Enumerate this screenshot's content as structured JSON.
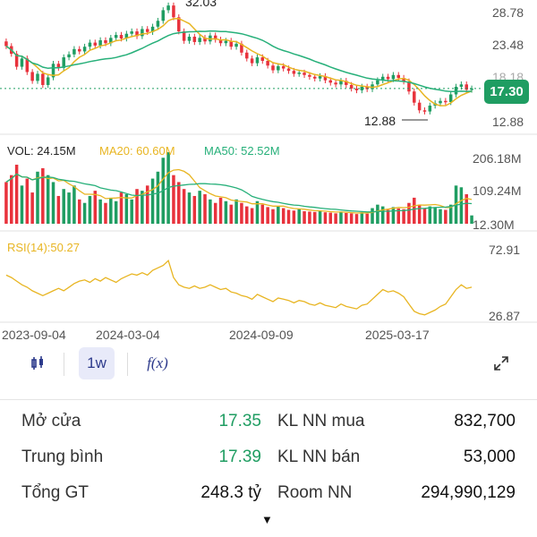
{
  "price_axis": {
    "labels": [
      "28.78",
      "23.48",
      "18.18",
      "12.88"
    ],
    "current": "17.30",
    "low_marker": "12.88",
    "high_marker": "32.03"
  },
  "volume": {
    "vol_label": "VOL: 24.15M",
    "ma20_label": "MA20: 60.60M",
    "ma50_label": "MA50: 52.52M",
    "axis_labels": [
      "206.18M",
      "109.24M",
      "12.30M"
    ]
  },
  "rsi": {
    "label": "RSI(14):50.27",
    "axis_labels": [
      "72.91",
      "26.87"
    ]
  },
  "time_axis": [
    "2023-09-04",
    "2024-03-04",
    "2024-09-09",
    "2025-03-17"
  ],
  "toolbar": {
    "candle_icon": "candlestick-icon",
    "interval": "1w",
    "fx_label": "f(x)",
    "expand_icon": "expand-icon"
  },
  "stats": {
    "open_label": "Mở cửa",
    "open_value": "17.35",
    "avg_label": "Trung bình",
    "avg_value": "17.39",
    "total_label": "Tổng GT",
    "total_value": "248.3 tỷ",
    "buy_label": "KL NN mua",
    "buy_value": "832,700",
    "sell_label": "KL NN bán",
    "sell_value": "53,000",
    "room_label": "Room NN",
    "room_value": "294,990,129"
  },
  "colors": {
    "up": "#1f9d62",
    "down": "#e8323c",
    "ma_fast": "#e8b522",
    "ma_slow": "#27b07a",
    "rsi": "#e8b522"
  },
  "chart_data": {
    "type": "candlestick",
    "price_range": [
      12.88,
      32.03
    ],
    "closes": [
      24.5,
      23.2,
      21.0,
      22.4,
      20.1,
      18.6,
      19.8,
      17.9,
      19.2,
      21.5,
      20.8,
      22.6,
      23.1,
      24.0,
      23.6,
      24.4,
      25.1,
      24.6,
      25.5,
      25.0,
      25.9,
      26.4,
      25.8,
      26.6,
      27.0,
      26.2,
      27.4,
      26.9,
      27.8,
      28.8,
      30.6,
      31.4,
      29.4,
      27.0,
      25.4,
      26.1,
      25.2,
      25.9,
      25.3,
      26.3,
      25.6,
      25.0,
      25.4,
      24.4,
      24.9,
      23.4,
      22.4,
      21.6,
      22.6,
      22.0,
      21.2,
      20.4,
      21.1,
      20.7,
      20.3,
      19.8,
      20.0,
      19.6,
      19.3,
      19.0,
      19.4,
      18.7,
      18.3,
      18.0,
      18.6,
      17.9,
      17.3,
      17.0,
      17.6,
      17.2,
      18.0,
      18.7,
      19.3,
      18.9,
      19.6,
      19.1,
      18.5,
      16.8,
      14.9,
      13.6,
      13.4,
      14.4,
      14.8,
      15.2,
      15.0,
      16.3,
      17.6,
      18.0,
      17.1,
      17.3
    ],
    "rsi_values": [
      60,
      58,
      55,
      52,
      50,
      47,
      45,
      43,
      45,
      47,
      49,
      47,
      50,
      53,
      55,
      56,
      54,
      57,
      55,
      58,
      56,
      54,
      57,
      59,
      61,
      60,
      62,
      60,
      64,
      66,
      68,
      72,
      58,
      52,
      50,
      49,
      51,
      49,
      50,
      52,
      50,
      48,
      49,
      46,
      45,
      43,
      42,
      40,
      44,
      42,
      40,
      38,
      41,
      40,
      39,
      37,
      39,
      38,
      36,
      35,
      37,
      35,
      34,
      33,
      36,
      34,
      33,
      32,
      35,
      36,
      40,
      44,
      48,
      46,
      47,
      45,
      42,
      36,
      30,
      28,
      27,
      29,
      31,
      34,
      36,
      42,
      48,
      52,
      49,
      50
    ],
    "volume_values": [
      120,
      140,
      170,
      110,
      130,
      90,
      150,
      160,
      140,
      120,
      80,
      100,
      90,
      110,
      70,
      60,
      80,
      95,
      70,
      60,
      75,
      65,
      90,
      85,
      70,
      100,
      95,
      110,
      130,
      150,
      190,
      206,
      140,
      120,
      100,
      90,
      80,
      95,
      85,
      70,
      60,
      75,
      65,
      55,
      70,
      60,
      50,
      45,
      65,
      55,
      48,
      42,
      50,
      45,
      40,
      38,
      42,
      36,
      35,
      34,
      38,
      33,
      32,
      30,
      35,
      31,
      30,
      28,
      33,
      29,
      45,
      55,
      50,
      40,
      48,
      44,
      42,
      60,
      75,
      55,
      45,
      50,
      48,
      42,
      40,
      55,
      110,
      105,
      85,
      24
    ]
  }
}
